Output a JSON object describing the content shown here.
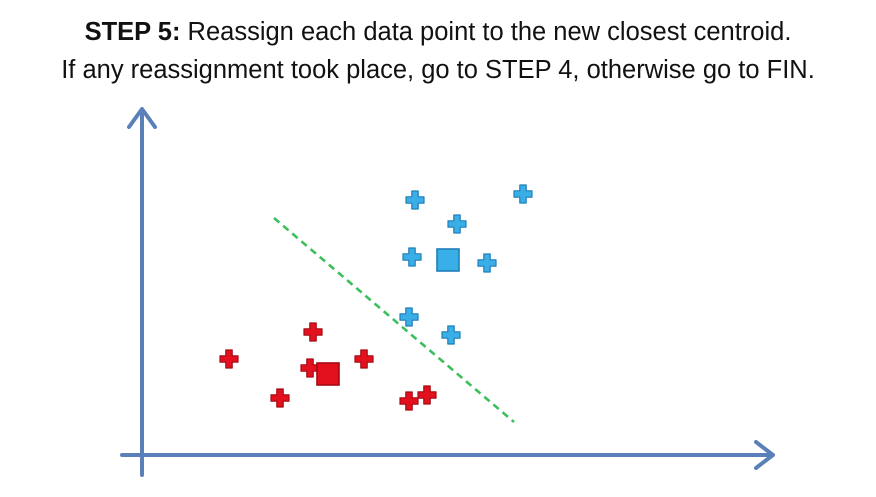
{
  "header": {
    "step_label": "STEP 5:",
    "line1_text": " Reassign each data point to the new closest centroid.",
    "line2_text": "If any reassignment took place, go to STEP 4, otherwise go to FIN."
  },
  "colors": {
    "axis": "#5b80b9",
    "boundary": "#3cbf5a",
    "cluster_blue": "#3aaee6",
    "cluster_blue_stroke": "#1f7fb8",
    "cluster_red": "#e3101e",
    "cluster_red_stroke": "#a50a14"
  },
  "clusters": [
    {
      "id": "blue",
      "color_key": "cluster_blue",
      "points": [
        {
          "x": 45.5,
          "y": 85
        },
        {
          "x": 63.5,
          "y": 87
        },
        {
          "x": 52.5,
          "y": 77
        },
        {
          "x": 45,
          "y": 66
        },
        {
          "x": 57.5,
          "y": 64
        },
        {
          "x": 44.5,
          "y": 46
        },
        {
          "x": 51.5,
          "y": 40
        }
      ],
      "centroid": {
        "x": 51,
        "y": 65
      }
    },
    {
      "id": "red",
      "color_key": "cluster_red",
      "points": [
        {
          "x": 28.5,
          "y": 41
        },
        {
          "x": 14.5,
          "y": 32
        },
        {
          "x": 37,
          "y": 32
        },
        {
          "x": 28,
          "y": 29
        },
        {
          "x": 23,
          "y": 19
        },
        {
          "x": 47.5,
          "y": 20
        },
        {
          "x": 44.5,
          "y": 18
        }
      ],
      "centroid": {
        "x": 31,
        "y": 27
      }
    }
  ],
  "boundary": {
    "style": "dashed",
    "from": {
      "x": 22,
      "y": 79
    },
    "to": {
      "x": 62,
      "y": 11
    }
  },
  "axes": {
    "x_range": [
      0,
      100
    ],
    "y_range": [
      0,
      100
    ]
  }
}
